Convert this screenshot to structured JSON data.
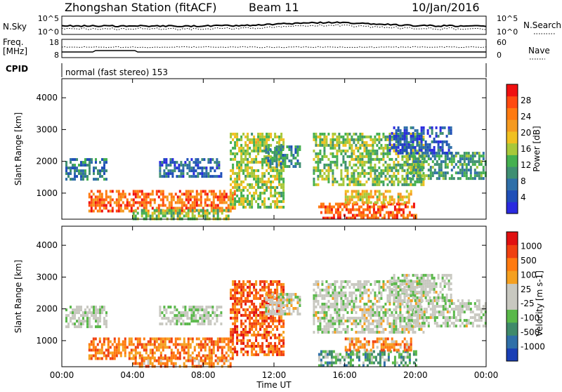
{
  "header": {
    "station": "Zhongshan Station (fitACF)",
    "beam": "Beam 11",
    "date": "10/Jan/2016"
  },
  "noise_panel": {
    "left_label": "N.Sky",
    "right_label": "N.Search",
    "left_ticks": [
      "10^5",
      "10^0"
    ],
    "right_ticks": [
      "10^5",
      "10^0"
    ]
  },
  "freq_panel": {
    "left_label_1": "Freq.",
    "left_label_2": "[MHz]",
    "right_label": "Nave",
    "left_ticks": [
      "18",
      "8"
    ],
    "right_ticks": [
      "60",
      "0"
    ]
  },
  "cpid": {
    "label": "CPID",
    "mode": "normal (fast stereo) 153"
  },
  "x_axis": {
    "label": "Time UT",
    "ticks": [
      "00:00",
      "04:00",
      "08:00",
      "12:00",
      "16:00",
      "20:00",
      "00:00"
    ]
  },
  "chart_data": [
    {
      "type": "heatmap",
      "ylabel": "Slant Range [km]",
      "yticks": [
        1000,
        2000,
        3000,
        4000
      ],
      "ylim": [
        180,
        4600
      ],
      "xlim": [
        0,
        24
      ],
      "colorbar": {
        "label": "Power [dB]",
        "ticks": [
          "4",
          "8",
          "12",
          "16",
          "20",
          "24",
          "28"
        ],
        "colors": [
          "#2a2ae0",
          "#1f4fb8",
          "#2f6fa8",
          "#3f8f72",
          "#45b050",
          "#a8c83a",
          "#f0c020",
          "#f59a20",
          "#ff7a10",
          "#ff4a10",
          "#f01010"
        ]
      },
      "regions": [
        {
          "t0": 0.2,
          "t1": 2.5,
          "r0": 1450,
          "r1": 2100,
          "level": 0.25
        },
        {
          "t0": 1.5,
          "t1": 9.8,
          "r0": 400,
          "r1": 1100,
          "level": 0.8
        },
        {
          "t0": 4.0,
          "t1": 9.5,
          "r0": 150,
          "r1": 500,
          "level": 0.45
        },
        {
          "t0": 5.5,
          "t1": 9.0,
          "r0": 1500,
          "r1": 2100,
          "level": 0.2
        },
        {
          "t0": 9.5,
          "t1": 12.5,
          "r0": 600,
          "r1": 2900,
          "level": 0.5
        },
        {
          "t0": 11.5,
          "t1": 13.5,
          "r0": 1800,
          "r1": 2500,
          "level": 0.3
        },
        {
          "t0": 14.2,
          "t1": 20.5,
          "r0": 1300,
          "r1": 2900,
          "level": 0.45
        },
        {
          "t0": 14.5,
          "t1": 20.0,
          "r0": 200,
          "r1": 700,
          "level": 0.85
        },
        {
          "t0": 16.0,
          "t1": 19.8,
          "r0": 700,
          "r1": 1100,
          "level": 0.6
        },
        {
          "t0": 19.5,
          "t1": 24.0,
          "r0": 1500,
          "r1": 2300,
          "level": 0.35
        },
        {
          "t0": 18.5,
          "t1": 22.0,
          "r0": 2300,
          "r1": 3100,
          "level": 0.15
        }
      ]
    },
    {
      "type": "heatmap",
      "ylabel": "Slant Range [km]",
      "yticks": [
        1000,
        2000,
        3000,
        4000
      ],
      "ylim": [
        180,
        4600
      ],
      "xlim": [
        0,
        24
      ],
      "colorbar": {
        "label": "Velocity [m s-1]",
        "ticks": [
          "1000",
          "500",
          "100",
          "25",
          "-25",
          "-100",
          "-500",
          "-1000"
        ],
        "colors": [
          "#1a3fb5",
          "#2f6fa8",
          "#3f8a6a",
          "#5ab84a",
          "#c8c8c0",
          "#c8c8c0",
          "#f5a020",
          "#ff7a10",
          "#f04010",
          "#e01010"
        ]
      },
      "regions": [
        {
          "t0": 0.2,
          "t1": 2.5,
          "r0": 1450,
          "r1": 2100,
          "level": 0.45
        },
        {
          "t0": 1.5,
          "t1": 9.8,
          "r0": 400,
          "r1": 1100,
          "level": 0.75
        },
        {
          "t0": 4.0,
          "t1": 9.5,
          "r0": 150,
          "r1": 500,
          "level": 0.72
        },
        {
          "t0": 5.5,
          "t1": 9.0,
          "r0": 1500,
          "r1": 2100,
          "level": 0.45
        },
        {
          "t0": 9.5,
          "t1": 12.5,
          "r0": 600,
          "r1": 2900,
          "level": 0.8
        },
        {
          "t0": 11.5,
          "t1": 13.5,
          "r0": 1800,
          "r1": 2500,
          "level": 0.5
        },
        {
          "t0": 14.2,
          "t1": 20.5,
          "r0": 1300,
          "r1": 2900,
          "level": 0.48
        },
        {
          "t0": 14.5,
          "t1": 20.0,
          "r0": 200,
          "r1": 700,
          "level": 0.3
        },
        {
          "t0": 16.0,
          "t1": 19.8,
          "r0": 700,
          "r1": 1100,
          "level": 0.7
        },
        {
          "t0": 19.5,
          "t1": 24.0,
          "r0": 1500,
          "r1": 2300,
          "level": 0.47
        },
        {
          "t0": 18.5,
          "t1": 22.0,
          "r0": 2300,
          "r1": 3100,
          "level": 0.46
        }
      ]
    }
  ]
}
